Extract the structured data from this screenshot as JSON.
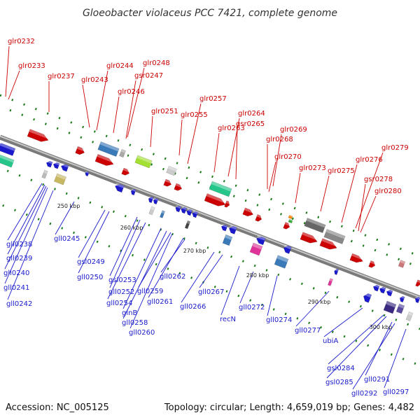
{
  "title": "Gloeobacter violaceus PCC 7421, complete genome",
  "footer": {
    "accession": "Accession: NC_005125",
    "summary": "Topology: circular; Length: 4,659,019 bp; Genes: 4,482"
  },
  "colors": {
    "forward_label": "#cc0000",
    "reverse_label": "#1a1acc",
    "backbone": "#888888",
    "orf_tick": "#1a7a1a"
  },
  "ruler": [
    "250 kbp",
    "260 kbp",
    "270 kbp",
    "280 kbp",
    "290 kbp",
    "300 kbp"
  ],
  "forward_labels": [
    "glr0232",
    "glr0233",
    "glr0237",
    "glr0243",
    "glr0244",
    "glr0248",
    "gsr0247",
    "glr0246",
    "glr0251",
    "glr0255",
    "glr0257",
    "glr0263",
    "glr0264",
    "gsr0265",
    "glr0269",
    "glr0268",
    "glr0270",
    "glr0273",
    "glr0275",
    "glr0276",
    "glr0279",
    "gsr0278",
    "glr0280"
  ],
  "reverse_labels": [
    "gll0238",
    "gll0239",
    "gll0240",
    "gll0241",
    "gll0242",
    "gll0245",
    "gsl0249",
    "gll0250",
    "gsl0253",
    "gll0252",
    "gll0254",
    "glnB",
    "gll0258",
    "gll0260",
    "gll0259",
    "gll0261",
    "gll0262",
    "gll0266",
    "gll0267",
    "recN",
    "gll0272",
    "gll0274",
    "gll0277",
    "ubiA",
    "gsl0284",
    "gsl0285",
    "gll0291",
    "gll0292",
    "gll0297"
  ]
}
